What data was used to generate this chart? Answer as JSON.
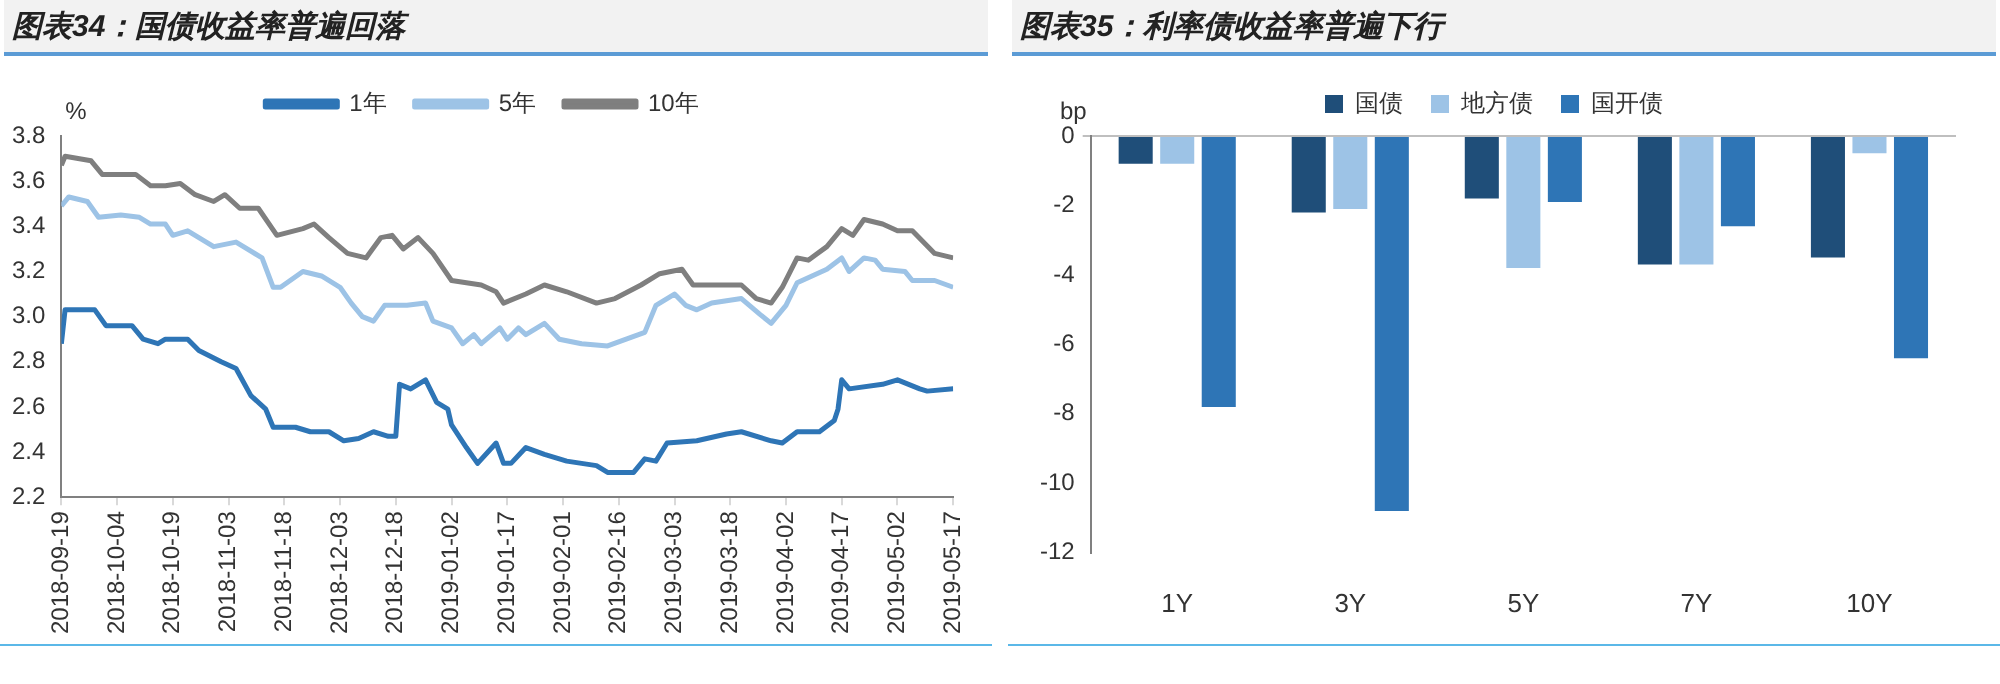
{
  "chart_data": [
    {
      "type": "line",
      "title": "图表34：国债收益率普遍回落",
      "ylabel": "%",
      "legend": "top",
      "xlim": [
        "2018-09-19",
        "2019-05-17"
      ],
      "xticks": [
        "2018-09-19",
        "2018-10-04",
        "2018-10-19",
        "2018-11-03",
        "2018-11-18",
        "2018-12-03",
        "2018-12-18",
        "2019-01-02",
        "2019-01-17",
        "2019-02-01",
        "2019-02-16",
        "2019-03-03",
        "2019-03-18",
        "2019-04-02",
        "2019-04-17",
        "2019-05-02",
        "2019-05-17"
      ],
      "ylim": [
        2.2,
        3.8
      ],
      "yticks": [
        2.2,
        2.4,
        2.6,
        2.8,
        {
          "value": 3,
          "label": "3.0"
        },
        3.2,
        3.4,
        3.6,
        3.8
      ],
      "series": [
        {
          "name": "1年",
          "color": "#2e75b6",
          "x": [
            "2018-09-19",
            "2018-09-20",
            "2018-09-28",
            "2018-10-01",
            "2018-10-08",
            "2018-10-11",
            "2018-10-15",
            "2018-10-17",
            "2018-10-23",
            "2018-10-26",
            "2018-11-01",
            "2018-11-05",
            "2018-11-09",
            "2018-11-13",
            "2018-11-15",
            "2018-11-21",
            "2018-11-25",
            "2018-11-30",
            "2018-12-04",
            "2018-12-08",
            "2018-12-12",
            "2018-12-16",
            "2018-12-18",
            "2018-12-19",
            "2018-12-22",
            "2018-12-26",
            "2018-12-29",
            "2019-01-01",
            "2019-01-02",
            "2019-01-06",
            "2019-01-09",
            "2019-01-14",
            "2019-01-16",
            "2019-01-18",
            "2019-01-22",
            "2019-01-27",
            "2019-02-02",
            "2019-02-10",
            "2019-02-13",
            "2019-02-20",
            "2019-02-23",
            "2019-02-26",
            "2019-03-01",
            "2019-03-09",
            "2019-03-17",
            "2019-03-21",
            "2019-03-29",
            "2019-04-01",
            "2019-04-05",
            "2019-04-11",
            "2019-04-15",
            "2019-04-16",
            "2019-04-17",
            "2019-04-19",
            "2019-04-28",
            "2019-05-02",
            "2019-05-08",
            "2019-05-10",
            "2019-05-17"
          ],
          "values": [
            2.88,
            3.03,
            3.03,
            2.96,
            2.96,
            2.9,
            2.88,
            2.9,
            2.9,
            2.85,
            2.8,
            2.77,
            2.65,
            2.59,
            2.51,
            2.51,
            2.49,
            2.49,
            2.45,
            2.46,
            2.49,
            2.47,
            2.47,
            2.7,
            2.68,
            2.72,
            2.62,
            2.59,
            2.52,
            2.42,
            2.35,
            2.44,
            2.35,
            2.35,
            2.42,
            2.39,
            2.36,
            2.34,
            2.31,
            2.31,
            2.37,
            2.36,
            2.44,
            2.45,
            2.48,
            2.49,
            2.45,
            2.44,
            2.49,
            2.49,
            2.54,
            2.59,
            2.72,
            2.68,
            2.7,
            2.72,
            2.68,
            2.67,
            2.68
          ]
        },
        {
          "name": "5年",
          "color": "#9dc3e6",
          "x": [
            "2018-09-19",
            "2018-09-21",
            "2018-09-26",
            "2018-09-29",
            "2018-10-05",
            "2018-10-10",
            "2018-10-13",
            "2018-10-17",
            "2018-10-19",
            "2018-10-23",
            "2018-10-30",
            "2018-11-05",
            "2018-11-12",
            "2018-11-15",
            "2018-11-17",
            "2018-11-23",
            "2018-11-28",
            "2018-12-03",
            "2018-12-06",
            "2018-12-09",
            "2018-12-12",
            "2018-12-15",
            "2018-12-21",
            "2018-12-26",
            "2018-12-28",
            "2019-01-02",
            "2019-01-05",
            "2019-01-08",
            "2019-01-10",
            "2019-01-15",
            "2019-01-17",
            "2019-01-20",
            "2019-01-22",
            "2019-01-27",
            "2019-01-31",
            "2019-02-06",
            "2019-02-13",
            "2019-02-18",
            "2019-02-23",
            "2019-02-26",
            "2019-03-03",
            "2019-03-06",
            "2019-03-09",
            "2019-03-13",
            "2019-03-21",
            "2019-03-26",
            "2019-03-29",
            "2019-04-02",
            "2019-04-05",
            "2019-04-09",
            "2019-04-13",
            "2019-04-17",
            "2019-04-19",
            "2019-04-23",
            "2019-04-26",
            "2019-04-28",
            "2019-05-04",
            "2019-05-06",
            "2019-05-12",
            "2019-05-17"
          ],
          "values": [
            3.49,
            3.53,
            3.51,
            3.44,
            3.45,
            3.44,
            3.41,
            3.41,
            3.36,
            3.38,
            3.31,
            3.33,
            3.26,
            3.13,
            3.13,
            3.2,
            3.18,
            3.13,
            3.06,
            3.0,
            2.98,
            3.05,
            3.05,
            3.06,
            2.98,
            2.95,
            2.88,
            2.92,
            2.88,
            2.95,
            2.9,
            2.95,
            2.92,
            2.97,
            2.9,
            2.88,
            2.87,
            2.9,
            2.93,
            3.05,
            3.1,
            3.05,
            3.03,
            3.06,
            3.08,
            3.01,
            2.97,
            3.05,
            3.15,
            3.18,
            3.21,
            3.26,
            3.2,
            3.26,
            3.25,
            3.21,
            3.2,
            3.16,
            3.16,
            3.13
          ]
        },
        {
          "name": "10年",
          "color": "#7f7f7f",
          "x": [
            "2018-09-19",
            "2018-09-20",
            "2018-09-27",
            "2018-09-30",
            "2018-10-09",
            "2018-10-13",
            "2018-10-17",
            "2018-10-21",
            "2018-10-25",
            "2018-10-30",
            "2018-11-02",
            "2018-11-06",
            "2018-11-11",
            "2018-11-16",
            "2018-11-23",
            "2018-11-26",
            "2018-11-30",
            "2018-12-05",
            "2018-12-10",
            "2018-12-14",
            "2018-12-17",
            "2018-12-20",
            "2018-12-24",
            "2018-12-28",
            "2019-01-02",
            "2019-01-10",
            "2019-01-14",
            "2019-01-16",
            "2019-01-22",
            "2019-01-27",
            "2019-02-02",
            "2019-02-10",
            "2019-02-15",
            "2019-02-22",
            "2019-02-27",
            "2019-03-05",
            "2019-03-08",
            "2019-03-16",
            "2019-03-21",
            "2019-03-25",
            "2019-03-29",
            "2019-04-01",
            "2019-04-05",
            "2019-04-08",
            "2019-04-13",
            "2019-04-17",
            "2019-04-20",
            "2019-04-23",
            "2019-04-28",
            "2019-05-02",
            "2019-05-06",
            "2019-05-12",
            "2019-05-17"
          ],
          "values": [
            3.67,
            3.71,
            3.69,
            3.63,
            3.63,
            3.58,
            3.58,
            3.59,
            3.54,
            3.51,
            3.54,
            3.48,
            3.48,
            3.36,
            3.39,
            3.41,
            3.35,
            3.28,
            3.26,
            3.35,
            3.36,
            3.3,
            3.35,
            3.28,
            3.16,
            3.14,
            3.11,
            3.06,
            3.1,
            3.14,
            3.11,
            3.06,
            3.08,
            3.14,
            3.19,
            3.21,
            3.14,
            3.14,
            3.14,
            3.08,
            3.06,
            3.13,
            3.26,
            3.25,
            3.31,
            3.39,
            3.36,
            3.43,
            3.41,
            3.38,
            3.38,
            3.28,
            3.26
          ]
        }
      ]
    },
    {
      "type": "bar",
      "title": "图表35：利率债收益率普遍下行",
      "ylabel": "bp",
      "legend": "top",
      "categories": [
        "1Y",
        "3Y",
        "5Y",
        "7Y",
        "10Y"
      ],
      "ylim": [
        -12,
        0
      ],
      "yticks": [
        -12,
        -10,
        -8,
        -6,
        -4,
        -2,
        0
      ],
      "series": [
        {
          "name": "国债",
          "color": "#1f4e79",
          "values": [
            -0.8,
            -2.2,
            -1.8,
            -3.7,
            -3.5
          ]
        },
        {
          "name": "地方债",
          "color": "#9dc3e6",
          "values": [
            -0.8,
            -2.1,
            -3.8,
            -3.7,
            -0.5
          ]
        },
        {
          "name": "国开债",
          "color": "#2e75b6",
          "values": [
            -7.8,
            -10.8,
            -1.9,
            -2.6,
            -6.4
          ]
        }
      ]
    }
  ]
}
